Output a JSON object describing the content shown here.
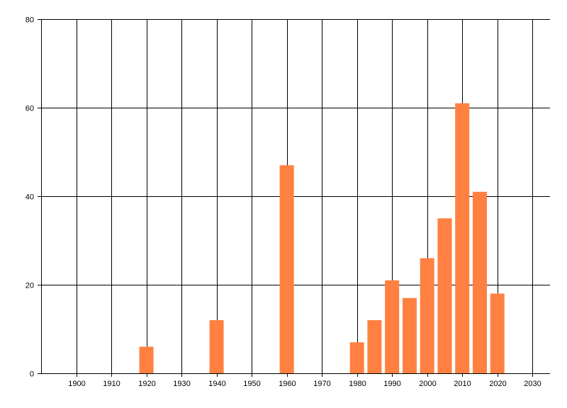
{
  "colors": {
    "bar": "#FF8040",
    "grid": "#000000",
    "axis": "#000000",
    "background": "#FFFFFF"
  },
  "chart_data": {
    "type": "bar",
    "title": "",
    "xlabel": "",
    "ylabel": "",
    "grid": true,
    "legend": "none",
    "xlim": [
      1890,
      2035
    ],
    "ylim": [
      0,
      80
    ],
    "x_ticks": [
      1900,
      1910,
      1920,
      1930,
      1940,
      1950,
      1960,
      1970,
      1980,
      1990,
      2000,
      2010,
      2020,
      2030
    ],
    "y_ticks": [
      0,
      20,
      40,
      60,
      80
    ],
    "x": [
      1920,
      1940,
      1960,
      1980,
      1985,
      1990,
      1995,
      2000,
      2005,
      2010,
      2015,
      2020
    ],
    "values": [
      6,
      12,
      47,
      7,
      12,
      21,
      17,
      26,
      35,
      61,
      41,
      18
    ]
  }
}
